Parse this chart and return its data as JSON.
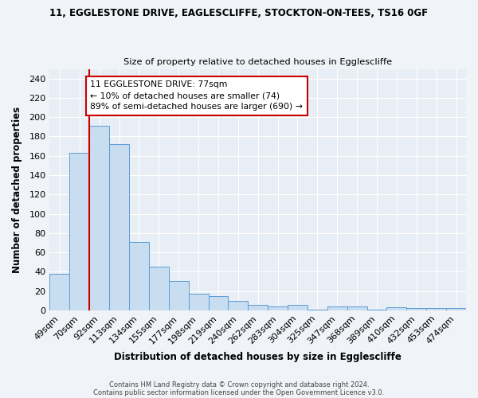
{
  "title1": "11, EGGLESTONE DRIVE, EAGLESCLIFFE, STOCKTON-ON-TEES, TS16 0GF",
  "title2": "Size of property relative to detached houses in Egglescliffe",
  "xlabel": "Distribution of detached houses by size in Egglescliffe",
  "ylabel": "Number of detached properties",
  "categories": [
    "49sqm",
    "70sqm",
    "92sqm",
    "113sqm",
    "134sqm",
    "155sqm",
    "177sqm",
    "198sqm",
    "219sqm",
    "240sqm",
    "262sqm",
    "283sqm",
    "304sqm",
    "325sqm",
    "347sqm",
    "368sqm",
    "389sqm",
    "410sqm",
    "432sqm",
    "453sqm",
    "474sqm"
  ],
  "values": [
    38,
    163,
    191,
    172,
    71,
    45,
    30,
    17,
    15,
    10,
    6,
    4,
    6,
    1,
    4,
    4,
    1,
    3,
    2,
    2,
    2
  ],
  "bar_color": "#c8ddf0",
  "bar_edge_color": "#5b9bd5",
  "vline_x": 1.5,
  "vline_color": "#cc0000",
  "annotation_text": "11 EGGLESTONE DRIVE: 77sqm\n← 10% of detached houses are smaller (74)\n89% of semi-detached houses are larger (690) →",
  "annotation_box_color": "white",
  "annotation_box_edge": "#cc0000",
  "footer1": "Contains HM Land Registry data © Crown copyright and database right 2024.",
  "footer2": "Contains public sector information licensed under the Open Government Licence v3.0.",
  "ylim": [
    0,
    250
  ],
  "yticks": [
    0,
    20,
    40,
    60,
    80,
    100,
    120,
    140,
    160,
    180,
    200,
    220,
    240
  ],
  "background_color": "#f0f4f8",
  "plot_bg_color": "#e8eef5",
  "grid_color": "white"
}
